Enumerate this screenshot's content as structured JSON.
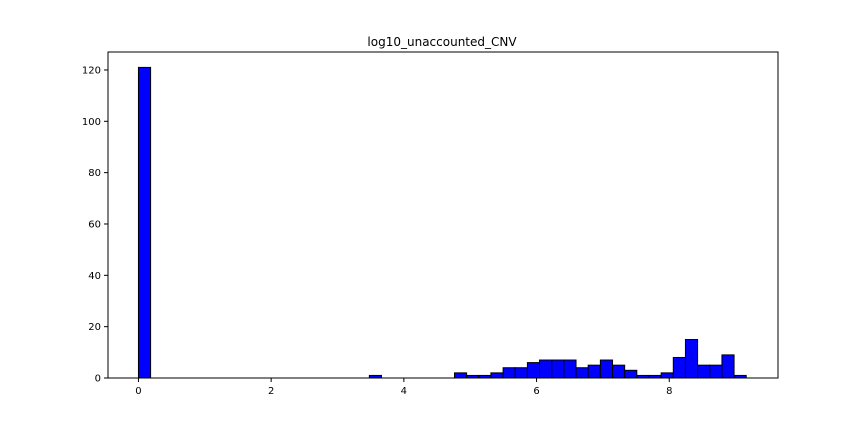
{
  "chart_data": {
    "type": "bar",
    "title": "log10_unaccounted_CNV",
    "xlabel": "",
    "ylabel": "",
    "xlim": [
      -0.459,
      9.639
    ],
    "ylim": [
      0,
      127
    ],
    "grid": false,
    "bar_color": "#0000ff",
    "edge_color": "#000000",
    "bin_width": 0.183,
    "x_ticks": [
      0,
      2,
      4,
      6,
      8
    ],
    "y_ticks": [
      0,
      20,
      40,
      60,
      80,
      100,
      120
    ],
    "x_tick_labels": [
      "0",
      "2",
      "4",
      "6",
      "8"
    ],
    "y_tick_labels": [
      "0",
      "20",
      "40",
      "60",
      "80",
      "100",
      "120"
    ],
    "bins": [
      {
        "x": 0.0,
        "count": 121
      },
      {
        "x": 3.48,
        "count": 1
      },
      {
        "x": 4.763,
        "count": 2
      },
      {
        "x": 4.946,
        "count": 1
      },
      {
        "x": 5.129,
        "count": 1
      },
      {
        "x": 5.312,
        "count": 2
      },
      {
        "x": 5.496,
        "count": 4
      },
      {
        "x": 5.679,
        "count": 4
      },
      {
        "x": 5.862,
        "count": 6
      },
      {
        "x": 6.045,
        "count": 7
      },
      {
        "x": 6.229,
        "count": 7
      },
      {
        "x": 6.412,
        "count": 7
      },
      {
        "x": 6.595,
        "count": 4
      },
      {
        "x": 6.778,
        "count": 5
      },
      {
        "x": 6.962,
        "count": 7
      },
      {
        "x": 7.145,
        "count": 5
      },
      {
        "x": 7.328,
        "count": 3
      },
      {
        "x": 7.511,
        "count": 1
      },
      {
        "x": 7.695,
        "count": 1
      },
      {
        "x": 7.878,
        "count": 2
      },
      {
        "x": 8.061,
        "count": 8
      },
      {
        "x": 8.244,
        "count": 15
      },
      {
        "x": 8.428,
        "count": 5
      },
      {
        "x": 8.611,
        "count": 5
      },
      {
        "x": 8.794,
        "count": 9
      },
      {
        "x": 8.977,
        "count": 1
      }
    ]
  }
}
